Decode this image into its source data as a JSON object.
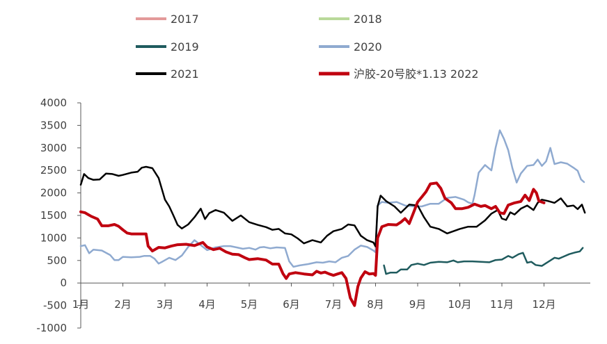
{
  "chart_data": {
    "type": "line",
    "title": "",
    "xlabel": "",
    "ylabel": "",
    "x_unit": "month",
    "xlim": [
      1,
      13.0
    ],
    "ylim": [
      -1000,
      4000
    ],
    "y_ticks": [
      4000,
      3500,
      3000,
      2500,
      2000,
      1500,
      1000,
      500,
      0,
      -500,
      -1000
    ],
    "y_tick_labels": [
      "4000",
      "3500",
      "3000",
      "2500",
      "2000",
      "1500",
      "1000",
      "500",
      "0",
      "-500",
      "-1000"
    ],
    "x_tick_labels": [
      "1月",
      "2月",
      "3月",
      "4月",
      "5月",
      "6月",
      "7月",
      "8月",
      "9月",
      "10月",
      "11月",
      "12月"
    ],
    "grid": false,
    "legend_position": "top",
    "series": [
      {
        "name": "2017",
        "color": "#e39a9a",
        "width": 2.5,
        "points": []
      },
      {
        "name": "2018",
        "color": "#b9d99a",
        "width": 2.5,
        "points": []
      },
      {
        "name": "2019",
        "color": "#1f5b5e",
        "width": 2.5,
        "points": [
          [
            8.2,
            390
          ],
          [
            8.25,
            200
          ],
          [
            8.35,
            230
          ],
          [
            8.5,
            230
          ],
          [
            8.6,
            300
          ],
          [
            8.75,
            300
          ],
          [
            8.85,
            400
          ],
          [
            9.0,
            430
          ],
          [
            9.15,
            400
          ],
          [
            9.3,
            450
          ],
          [
            9.5,
            470
          ],
          [
            9.7,
            460
          ],
          [
            9.85,
            500
          ],
          [
            9.95,
            460
          ],
          [
            10.1,
            480
          ],
          [
            10.3,
            480
          ],
          [
            10.5,
            470
          ],
          [
            10.7,
            460
          ],
          [
            10.85,
            510
          ],
          [
            11.0,
            520
          ],
          [
            11.15,
            600
          ],
          [
            11.25,
            560
          ],
          [
            11.4,
            640
          ],
          [
            11.5,
            670
          ],
          [
            11.6,
            450
          ],
          [
            11.7,
            470
          ],
          [
            11.8,
            400
          ],
          [
            11.95,
            380
          ],
          [
            12.05,
            440
          ],
          [
            12.15,
            500
          ],
          [
            12.25,
            560
          ],
          [
            12.35,
            540
          ],
          [
            12.45,
            580
          ],
          [
            12.6,
            640
          ],
          [
            12.75,
            680
          ],
          [
            12.85,
            700
          ],
          [
            12.92,
            780
          ]
        ]
      },
      {
        "name": "2020",
        "color": "#8faad0",
        "width": 2.5,
        "points": [
          [
            1.0,
            820
          ],
          [
            1.1,
            840
          ],
          [
            1.2,
            660
          ],
          [
            1.3,
            740
          ],
          [
            1.5,
            720
          ],
          [
            1.7,
            620
          ],
          [
            1.8,
            510
          ],
          [
            1.9,
            510
          ],
          [
            2.0,
            580
          ],
          [
            2.2,
            570
          ],
          [
            2.4,
            580
          ],
          [
            2.5,
            600
          ],
          [
            2.65,
            600
          ],
          [
            2.75,
            540
          ],
          [
            2.85,
            430
          ],
          [
            2.95,
            480
          ],
          [
            3.1,
            560
          ],
          [
            3.25,
            510
          ],
          [
            3.4,
            610
          ],
          [
            3.55,
            800
          ],
          [
            3.7,
            950
          ],
          [
            3.85,
            840
          ],
          [
            4.0,
            730
          ],
          [
            4.2,
            790
          ],
          [
            4.4,
            820
          ],
          [
            4.55,
            820
          ],
          [
            4.7,
            790
          ],
          [
            4.85,
            760
          ],
          [
            5.0,
            780
          ],
          [
            5.15,
            740
          ],
          [
            5.25,
            790
          ],
          [
            5.35,
            800
          ],
          [
            5.5,
            770
          ],
          [
            5.65,
            790
          ],
          [
            5.85,
            780
          ],
          [
            5.95,
            480
          ],
          [
            6.05,
            360
          ],
          [
            6.2,
            390
          ],
          [
            6.4,
            420
          ],
          [
            6.6,
            460
          ],
          [
            6.75,
            450
          ],
          [
            6.9,
            480
          ],
          [
            7.05,
            460
          ],
          [
            7.2,
            560
          ],
          [
            7.35,
            600
          ],
          [
            7.5,
            740
          ],
          [
            7.65,
            830
          ],
          [
            7.8,
            800
          ],
          [
            7.95,
            720
          ],
          [
            8.0,
            680
          ],
          [
            8.05,
            1720
          ],
          [
            8.15,
            1800
          ],
          [
            8.3,
            1780
          ],
          [
            8.5,
            1800
          ],
          [
            8.7,
            1720
          ],
          [
            8.9,
            1700
          ],
          [
            9.1,
            1700
          ],
          [
            9.3,
            1760
          ],
          [
            9.5,
            1760
          ],
          [
            9.7,
            1890
          ],
          [
            9.9,
            1910
          ],
          [
            10.1,
            1850
          ],
          [
            10.2,
            1790
          ],
          [
            10.3,
            1760
          ],
          [
            10.35,
            1950
          ],
          [
            10.45,
            2450
          ],
          [
            10.6,
            2620
          ],
          [
            10.75,
            2500
          ],
          [
            10.85,
            3000
          ],
          [
            10.95,
            3390
          ],
          [
            11.05,
            3200
          ],
          [
            11.15,
            2950
          ],
          [
            11.25,
            2550
          ],
          [
            11.35,
            2230
          ],
          [
            11.45,
            2430
          ],
          [
            11.6,
            2600
          ],
          [
            11.75,
            2620
          ],
          [
            11.85,
            2740
          ],
          [
            11.95,
            2600
          ],
          [
            12.05,
            2700
          ],
          [
            12.15,
            3000
          ],
          [
            12.25,
            2640
          ],
          [
            12.4,
            2680
          ],
          [
            12.55,
            2650
          ],
          [
            12.7,
            2560
          ],
          [
            12.8,
            2490
          ],
          [
            12.88,
            2300
          ],
          [
            12.95,
            2240
          ]
        ]
      },
      {
        "name": "2021",
        "color": "#000000",
        "width": 2.5,
        "points": [
          [
            1.0,
            2180
          ],
          [
            1.08,
            2420
          ],
          [
            1.18,
            2330
          ],
          [
            1.3,
            2290
          ],
          [
            1.45,
            2300
          ],
          [
            1.6,
            2430
          ],
          [
            1.75,
            2420
          ],
          [
            1.9,
            2380
          ],
          [
            2.0,
            2400
          ],
          [
            2.2,
            2450
          ],
          [
            2.35,
            2470
          ],
          [
            2.45,
            2560
          ],
          [
            2.55,
            2580
          ],
          [
            2.7,
            2550
          ],
          [
            2.85,
            2330
          ],
          [
            3.0,
            1850
          ],
          [
            3.1,
            1700
          ],
          [
            3.2,
            1500
          ],
          [
            3.3,
            1290
          ],
          [
            3.4,
            1210
          ],
          [
            3.55,
            1300
          ],
          [
            3.7,
            1460
          ],
          [
            3.85,
            1650
          ],
          [
            3.95,
            1420
          ],
          [
            4.05,
            1550
          ],
          [
            4.2,
            1620
          ],
          [
            4.4,
            1560
          ],
          [
            4.6,
            1380
          ],
          [
            4.8,
            1500
          ],
          [
            5.0,
            1350
          ],
          [
            5.2,
            1290
          ],
          [
            5.4,
            1240
          ],
          [
            5.55,
            1180
          ],
          [
            5.7,
            1200
          ],
          [
            5.85,
            1100
          ],
          [
            6.0,
            1080
          ],
          [
            6.15,
            990
          ],
          [
            6.3,
            880
          ],
          [
            6.5,
            950
          ],
          [
            6.7,
            900
          ],
          [
            6.85,
            1050
          ],
          [
            7.0,
            1150
          ],
          [
            7.2,
            1200
          ],
          [
            7.35,
            1300
          ],
          [
            7.5,
            1280
          ],
          [
            7.65,
            1050
          ],
          [
            7.8,
            950
          ],
          [
            7.95,
            900
          ],
          [
            8.0,
            810
          ],
          [
            8.05,
            1700
          ],
          [
            8.12,
            1940
          ],
          [
            8.25,
            1820
          ],
          [
            8.45,
            1700
          ],
          [
            8.6,
            1560
          ],
          [
            8.8,
            1740
          ],
          [
            9.0,
            1720
          ],
          [
            9.15,
            1460
          ],
          [
            9.3,
            1250
          ],
          [
            9.5,
            1200
          ],
          [
            9.7,
            1100
          ],
          [
            9.85,
            1150
          ],
          [
            10.0,
            1200
          ],
          [
            10.2,
            1250
          ],
          [
            10.4,
            1250
          ],
          [
            10.6,
            1390
          ],
          [
            10.75,
            1540
          ],
          [
            10.9,
            1620
          ],
          [
            11.0,
            1430
          ],
          [
            11.1,
            1400
          ],
          [
            11.2,
            1570
          ],
          [
            11.3,
            1520
          ],
          [
            11.45,
            1650
          ],
          [
            11.6,
            1720
          ],
          [
            11.75,
            1620
          ],
          [
            11.85,
            1780
          ],
          [
            11.95,
            1850
          ],
          [
            12.1,
            1820
          ],
          [
            12.25,
            1780
          ],
          [
            12.4,
            1880
          ],
          [
            12.55,
            1700
          ],
          [
            12.7,
            1720
          ],
          [
            12.8,
            1640
          ],
          [
            12.9,
            1740
          ],
          [
            12.97,
            1560
          ]
        ]
      },
      {
        "name": "沪胶-20号胶*1.13 2022",
        "color": "#c0000f",
        "width": 4,
        "points": [
          [
            1.0,
            1580
          ],
          [
            1.1,
            1560
          ],
          [
            1.25,
            1480
          ],
          [
            1.4,
            1420
          ],
          [
            1.5,
            1270
          ],
          [
            1.65,
            1270
          ],
          [
            1.8,
            1300
          ],
          [
            1.9,
            1260
          ],
          [
            2.0,
            1180
          ],
          [
            2.1,
            1110
          ],
          [
            2.2,
            1090
          ],
          [
            2.4,
            1090
          ],
          [
            2.55,
            1090
          ],
          [
            2.6,
            820
          ],
          [
            2.7,
            710
          ],
          [
            2.85,
            790
          ],
          [
            3.0,
            780
          ],
          [
            3.15,
            820
          ],
          [
            3.3,
            850
          ],
          [
            3.5,
            860
          ],
          [
            3.7,
            830
          ],
          [
            3.9,
            900
          ],
          [
            4.0,
            800
          ],
          [
            4.15,
            740
          ],
          [
            4.3,
            770
          ],
          [
            4.45,
            690
          ],
          [
            4.6,
            640
          ],
          [
            4.75,
            630
          ],
          [
            4.9,
            560
          ],
          [
            5.0,
            520
          ],
          [
            5.2,
            540
          ],
          [
            5.4,
            510
          ],
          [
            5.55,
            420
          ],
          [
            5.7,
            420
          ],
          [
            5.8,
            210
          ],
          [
            5.88,
            100
          ],
          [
            5.95,
            200
          ],
          [
            6.1,
            230
          ],
          [
            6.3,
            200
          ],
          [
            6.5,
            180
          ],
          [
            6.6,
            260
          ],
          [
            6.7,
            220
          ],
          [
            6.8,
            240
          ],
          [
            6.9,
            200
          ],
          [
            7.0,
            170
          ],
          [
            7.1,
            200
          ],
          [
            7.2,
            230
          ],
          [
            7.3,
            100
          ],
          [
            7.4,
            -330
          ],
          [
            7.5,
            -500
          ],
          [
            7.58,
            -80
          ],
          [
            7.65,
            110
          ],
          [
            7.75,
            250
          ],
          [
            7.85,
            200
          ],
          [
            7.95,
            210
          ],
          [
            8.0,
            170
          ],
          [
            8.05,
            1000
          ],
          [
            8.15,
            1250
          ],
          [
            8.3,
            1300
          ],
          [
            8.5,
            1290
          ],
          [
            8.6,
            1350
          ],
          [
            8.7,
            1430
          ],
          [
            8.8,
            1320
          ],
          [
            8.9,
            1560
          ],
          [
            9.0,
            1800
          ],
          [
            9.1,
            1910
          ],
          [
            9.2,
            2030
          ],
          [
            9.3,
            2200
          ],
          [
            9.45,
            2220
          ],
          [
            9.55,
            2100
          ],
          [
            9.65,
            1880
          ],
          [
            9.8,
            1780
          ],
          [
            9.9,
            1650
          ],
          [
            10.05,
            1650
          ],
          [
            10.2,
            1680
          ],
          [
            10.35,
            1750
          ],
          [
            10.5,
            1700
          ],
          [
            10.6,
            1720
          ],
          [
            10.75,
            1650
          ],
          [
            10.85,
            1700
          ],
          [
            10.95,
            1560
          ],
          [
            11.05,
            1540
          ],
          [
            11.15,
            1730
          ],
          [
            11.3,
            1780
          ],
          [
            11.45,
            1810
          ],
          [
            11.55,
            1950
          ],
          [
            11.65,
            1830
          ],
          [
            11.75,
            2080
          ],
          [
            11.82,
            2000
          ],
          [
            11.88,
            1820
          ],
          [
            12.0,
            1780
          ]
        ]
      }
    ]
  }
}
